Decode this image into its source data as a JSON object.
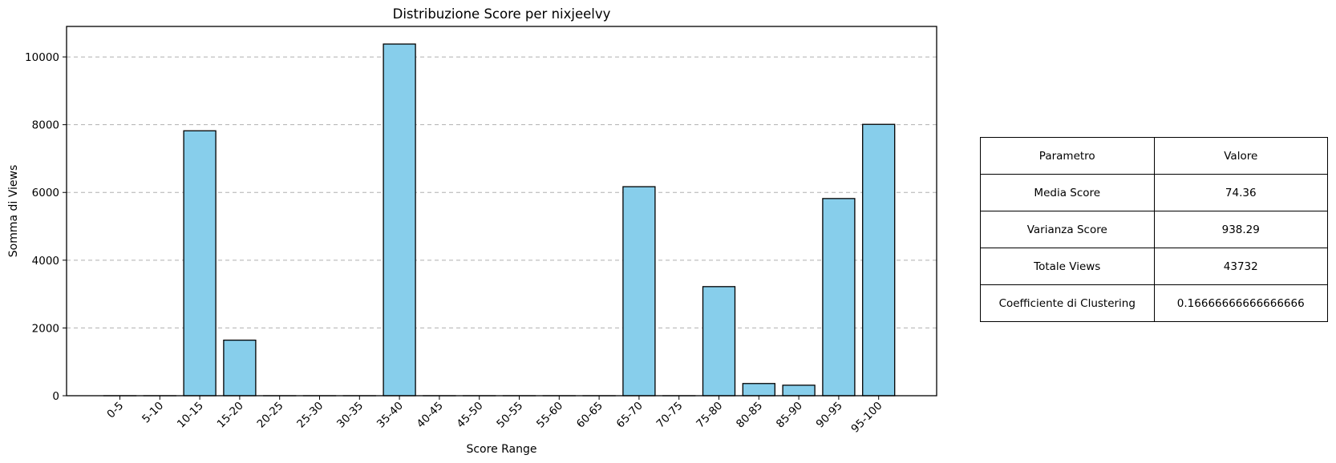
{
  "chart_data": {
    "type": "bar",
    "title": "Distribuzione Score per nixjeelvy",
    "xlabel": "Score Range",
    "ylabel": "Somma di Views",
    "categories": [
      "0-5",
      "5-10",
      "10-15",
      "15-20",
      "20-25",
      "25-30",
      "30-35",
      "35-40",
      "40-45",
      "45-50",
      "50-55",
      "55-60",
      "60-65",
      "65-70",
      "70-75",
      "75-80",
      "80-85",
      "85-90",
      "90-95",
      "95-100"
    ],
    "values": [
      0,
      0,
      7820,
      1640,
      0,
      0,
      0,
      10380,
      0,
      0,
      0,
      0,
      0,
      6170,
      0,
      3220,
      360,
      310,
      5820,
      8010
    ],
    "yticks": [
      0,
      2000,
      4000,
      6000,
      8000,
      10000
    ],
    "ylim": [
      0,
      10900
    ],
    "grid": "y",
    "bar_color": "#87ceeb",
    "bar_edge_color": "#000000",
    "grid_color": "#b0b0b0"
  },
  "table": {
    "header": [
      "Parametro",
      "Valore"
    ],
    "rows": [
      [
        "Media Score",
        "74.36"
      ],
      [
        "Varianza Score",
        "938.29"
      ],
      [
        "Totale Views",
        "43732"
      ],
      [
        "Coefficiente di Clustering",
        "0.16666666666666666"
      ]
    ]
  }
}
